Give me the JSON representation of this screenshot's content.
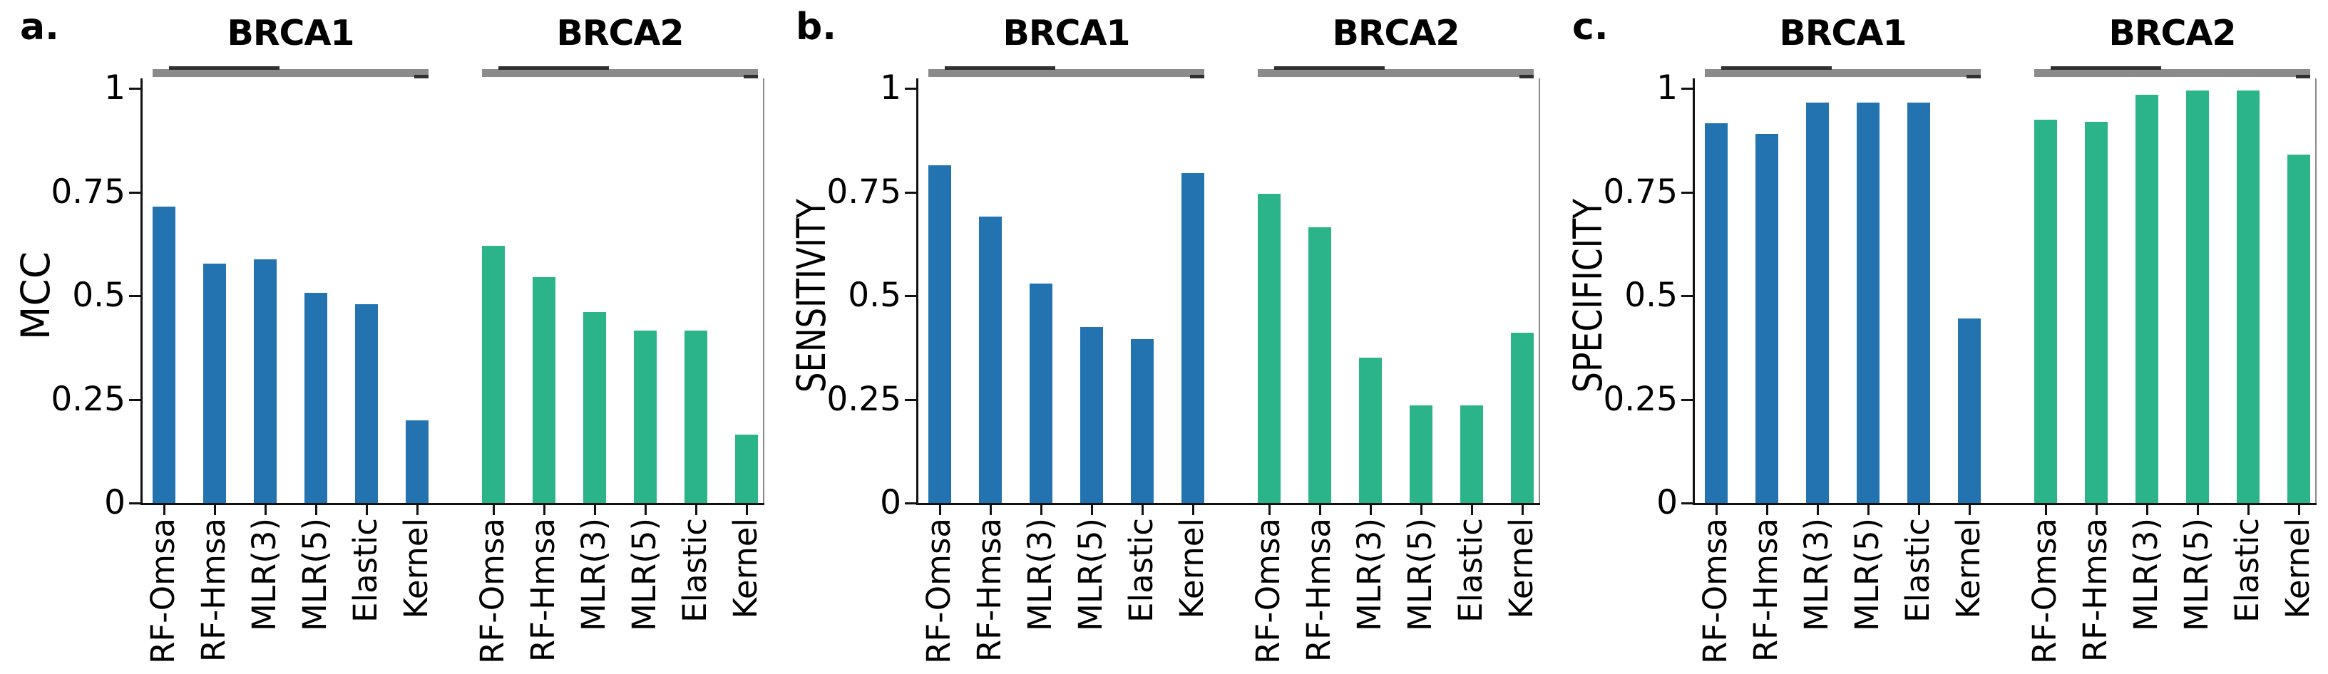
{
  "figure": {
    "background": "#ffffff",
    "yticks": [
      "0",
      "0.25",
      "0.5",
      "0.75",
      "1"
    ],
    "group_labels": [
      "BRCA1",
      "BRCA2"
    ],
    "methods": [
      "RF-Omsa",
      "RF-Hmsa",
      "MLR(3)",
      "MLR(5)",
      "Elastic",
      "Kernel"
    ],
    "colors": {
      "brca1_bar": "#2273b0",
      "brca2_bar": "#2bb48a",
      "bracket": "#8b8b8b",
      "bracket_dark": "#303030",
      "axis": "#111111",
      "right_spine": "#8a8a8a",
      "text": "#000000"
    }
  },
  "chart_data": [
    {
      "type": "bar",
      "panel_letter": "a.",
      "ylabel": "MCC",
      "xlabel": "",
      "categories": [
        "RF-Omsa",
        "RF-Hmsa",
        "MLR(3)",
        "MLR(5)",
        "Elastic",
        "Kernel"
      ],
      "series": [
        {
          "name": "BRCA1",
          "color": "#2273b0",
          "values": [
            0.715,
            0.578,
            0.588,
            0.507,
            0.48,
            0.2
          ]
        },
        {
          "name": "BRCA2",
          "color": "#2bb48a",
          "values": [
            0.62,
            0.545,
            0.46,
            0.415,
            0.415,
            0.165
          ]
        }
      ],
      "ylim": [
        0,
        1
      ],
      "yticks": [
        0,
        0.25,
        0.5,
        0.75,
        1
      ],
      "grid": false,
      "legend": "none",
      "x_tick_rotation": 90,
      "group_headers_above_plot": true
    },
    {
      "type": "bar",
      "panel_letter": "b.",
      "ylabel": "SENSITIVITY",
      "xlabel": "",
      "categories": [
        "RF-Omsa",
        "RF-Hmsa",
        "MLR(3)",
        "MLR(5)",
        "Elastic",
        "Kernel"
      ],
      "series": [
        {
          "name": "BRCA1",
          "color": "#2273b0",
          "values": [
            0.815,
            0.69,
            0.53,
            0.425,
            0.395,
            0.795
          ]
        },
        {
          "name": "BRCA2",
          "color": "#2bb48a",
          "values": [
            0.745,
            0.665,
            0.35,
            0.235,
            0.235,
            0.41
          ]
        }
      ],
      "ylim": [
        0,
        1
      ],
      "yticks": [
        0,
        0.25,
        0.5,
        0.75,
        1
      ],
      "grid": false,
      "legend": "none",
      "x_tick_rotation": 90,
      "group_headers_above_plot": true
    },
    {
      "type": "bar",
      "panel_letter": "c.",
      "ylabel": "SPECIFICITY",
      "xlabel": "",
      "categories": [
        "RF-Omsa",
        "RF-Hmsa",
        "MLR(3)",
        "MLR(5)",
        "Elastic",
        "Kernel"
      ],
      "series": [
        {
          "name": "BRCA1",
          "color": "#2273b0",
          "values": [
            0.915,
            0.89,
            0.965,
            0.965,
            0.965,
            0.445
          ]
        },
        {
          "name": "BRCA2",
          "color": "#2bb48a",
          "values": [
            0.925,
            0.92,
            0.985,
            0.995,
            0.995,
            0.84
          ]
        }
      ],
      "ylim": [
        0,
        1
      ],
      "yticks": [
        0,
        0.25,
        0.5,
        0.75,
        1
      ],
      "grid": false,
      "legend": "none",
      "x_tick_rotation": 90,
      "group_headers_above_plot": true
    }
  ]
}
